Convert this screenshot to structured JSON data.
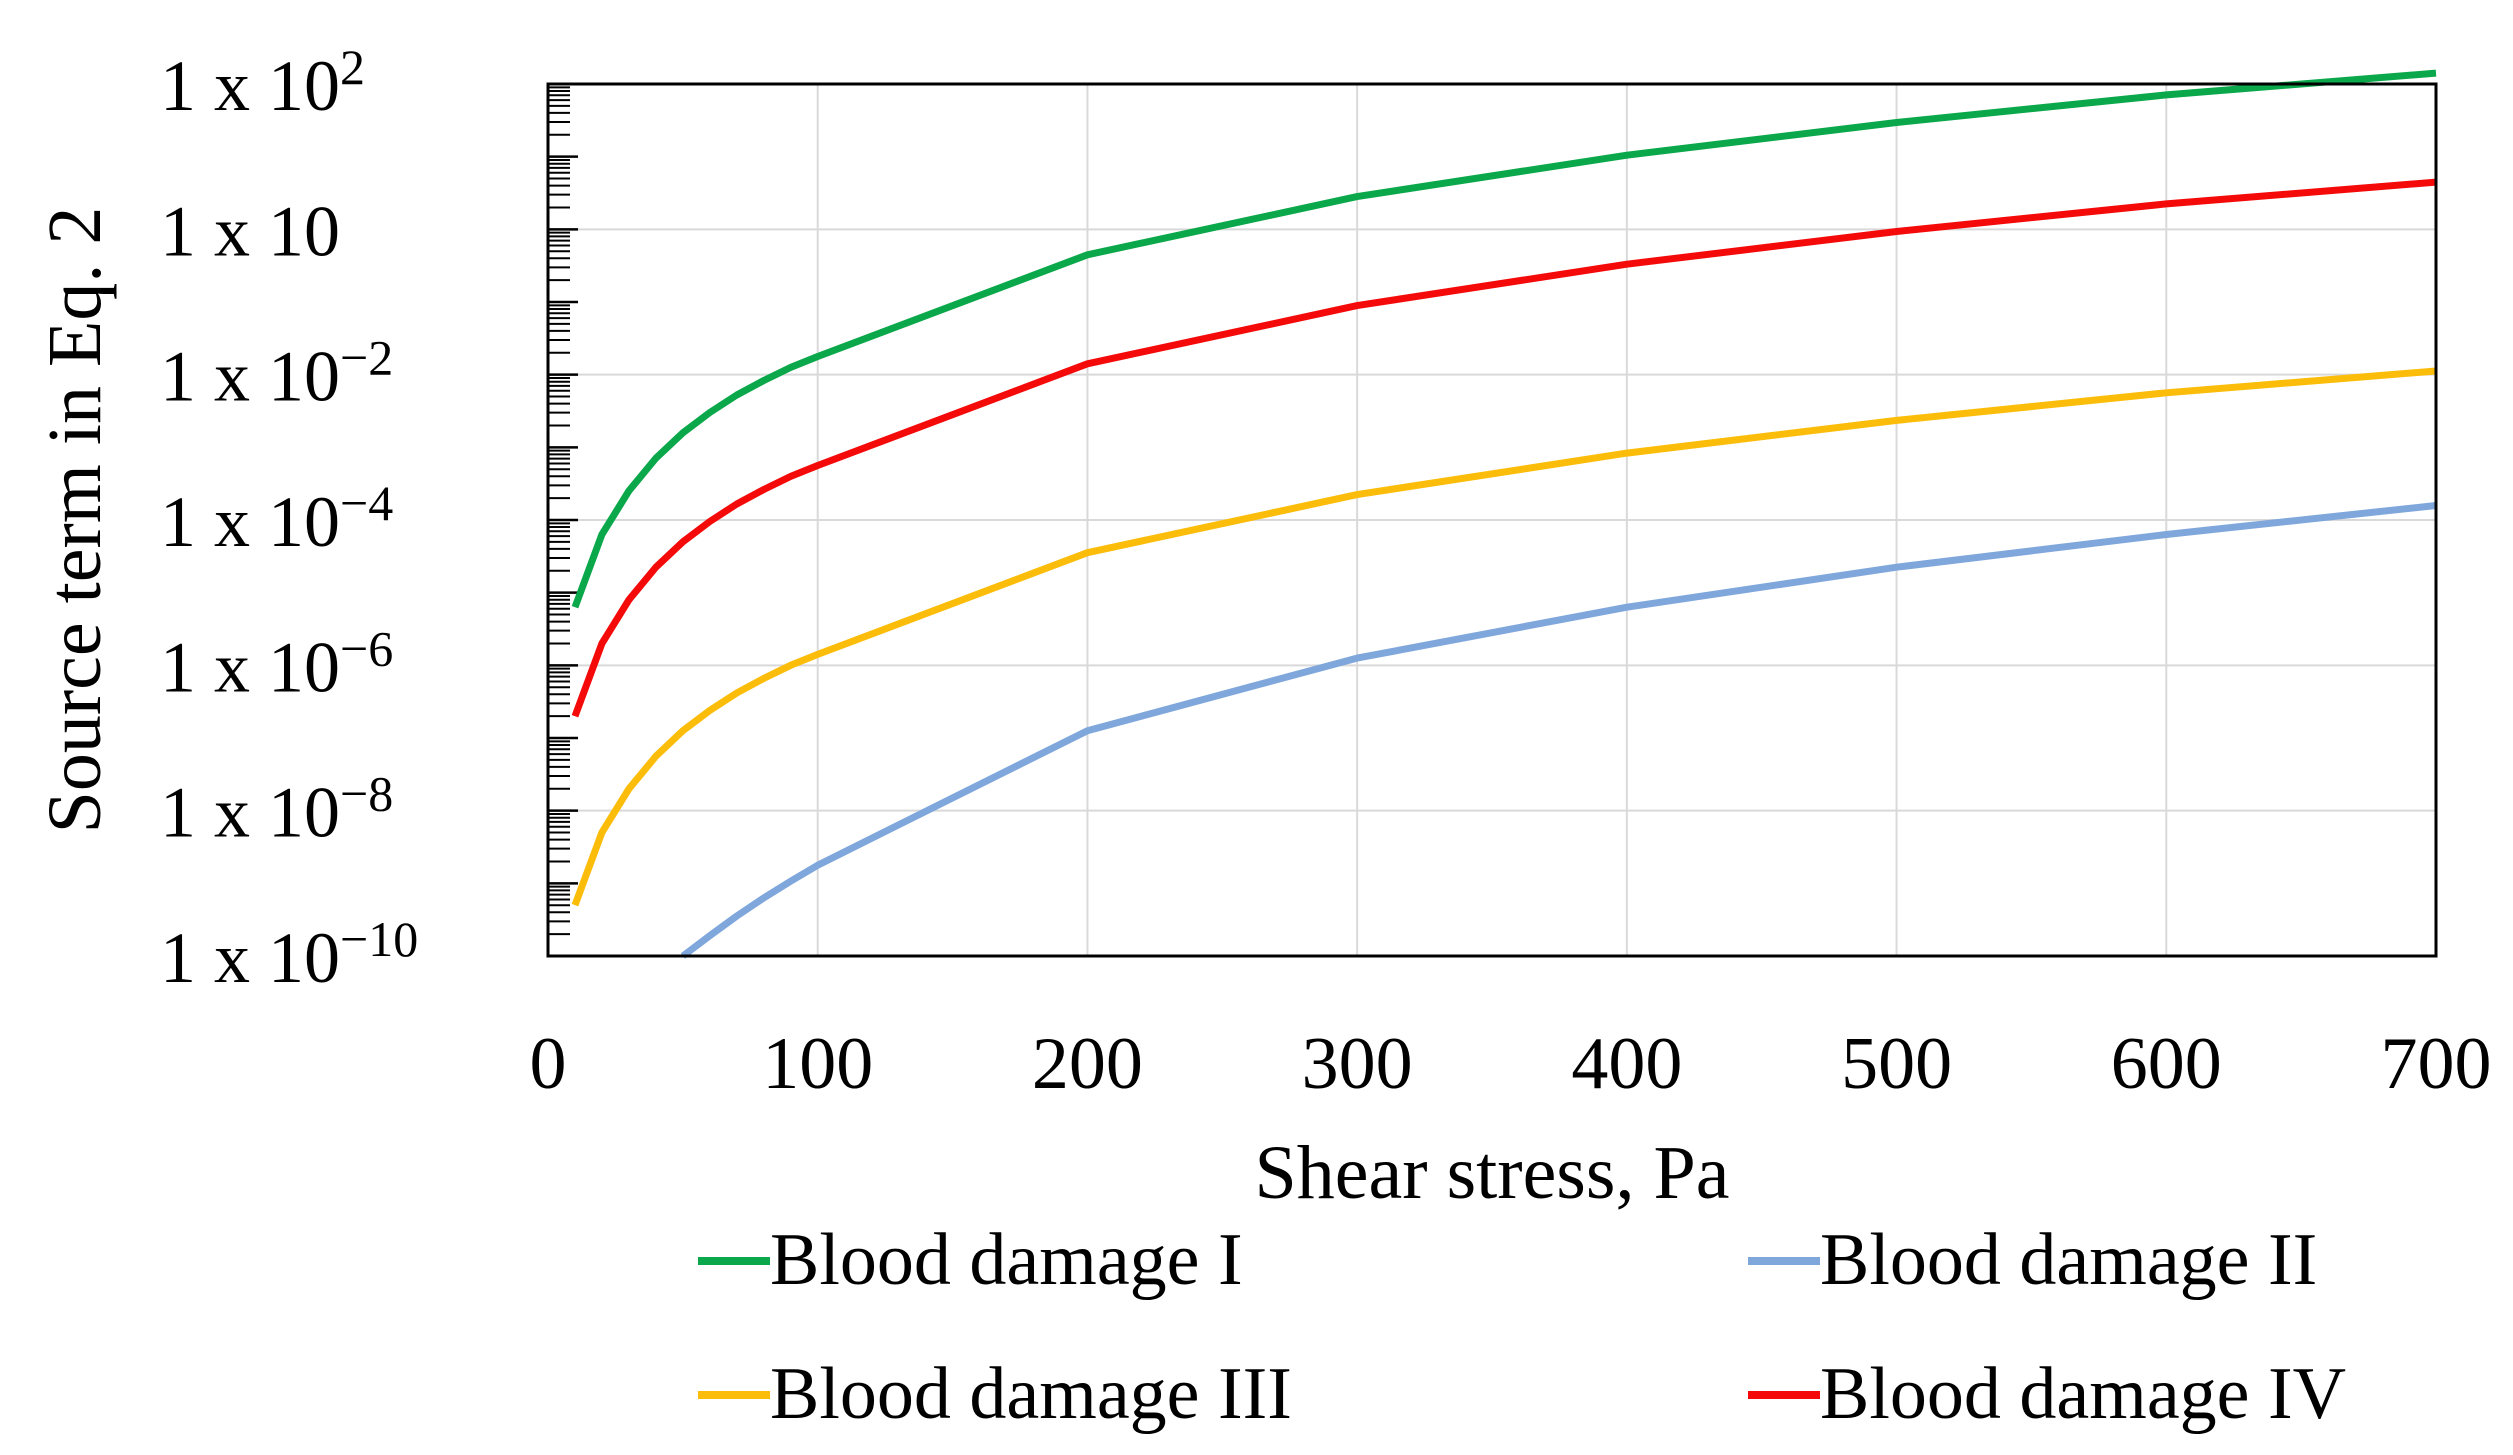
{
  "chart_data": {
    "type": "line",
    "title": "",
    "xlabel": "Shear stress, Pa",
    "ylabel": "Source term in Eq. 2",
    "xlim": [
      0,
      700
    ],
    "ylim_log10": [
      -10,
      2
    ],
    "scale_y": "log",
    "x_ticks": [
      0,
      100,
      200,
      300,
      400,
      500,
      600,
      700
    ],
    "x_tick_labels": [
      "0",
      "100",
      "200",
      "300",
      "400",
      "500",
      "600",
      "700"
    ],
    "y_ticks": [
      {
        "exp": 2,
        "base": "1 x 10",
        "sup": "2"
      },
      {
        "exp": 0,
        "base": "1 x 10",
        "sup": ""
      },
      {
        "exp": -2,
        "base": "1 x 10",
        "sup": "−2"
      },
      {
        "exp": -4,
        "base": "1 x 10",
        "sup": "−4"
      },
      {
        "exp": -6,
        "base": "1 x 10",
        "sup": "−6"
      },
      {
        "exp": -8,
        "base": "1 x 10",
        "sup": "−8"
      },
      {
        "exp": -10,
        "base": "1 x 10",
        "sup": "−10"
      }
    ],
    "grid": true,
    "legend_position": "bottom",
    "series": [
      {
        "name": "Blood damage I",
        "color": "#0aa84a",
        "x": [
          10,
          20,
          30,
          40,
          50,
          60,
          70,
          80,
          90,
          100,
          200,
          300,
          400,
          500,
          600,
          700
        ],
        "log10_y": [
          -5.2,
          -4.2,
          -3.6,
          -3.15,
          -2.8,
          -2.52,
          -2.28,
          -2.08,
          -1.9,
          -1.75,
          -0.35,
          0.45,
          1.02,
          1.47,
          1.85,
          2.15
        ]
      },
      {
        "name": "Blood damage II",
        "color": "#7fa7dc",
        "x": [
          50,
          60,
          70,
          80,
          90,
          100,
          200,
          300,
          400,
          500,
          600,
          700
        ],
        "log10_y": [
          -10.0,
          -9.72,
          -9.45,
          -9.2,
          -8.97,
          -8.75,
          -6.9,
          -5.9,
          -5.2,
          -4.65,
          -4.2,
          -3.8
        ]
      },
      {
        "name": "Blood damage III",
        "color": "#fbbd09",
        "x": [
          10,
          20,
          30,
          40,
          50,
          60,
          70,
          80,
          90,
          100,
          200,
          300,
          400,
          500,
          600,
          700
        ],
        "log10_y": [
          -9.3,
          -8.3,
          -7.7,
          -7.25,
          -6.9,
          -6.62,
          -6.38,
          -6.18,
          -6.0,
          -5.85,
          -4.45,
          -3.65,
          -3.08,
          -2.63,
          -2.25,
          -1.95
        ]
      },
      {
        "name": "Blood damage IV",
        "color": "#f50a0a",
        "x": [
          10,
          20,
          30,
          40,
          50,
          60,
          70,
          80,
          90,
          100,
          200,
          300,
          400,
          500,
          600,
          700
        ],
        "log10_y": [
          -6.7,
          -5.7,
          -5.1,
          -4.65,
          -4.3,
          -4.02,
          -3.78,
          -3.58,
          -3.4,
          -3.25,
          -1.85,
          -1.05,
          -0.48,
          -0.03,
          0.35,
          0.65
        ]
      }
    ]
  },
  "legend": {
    "items": [
      {
        "label": "Blood damage I",
        "color": "#0aa84a"
      },
      {
        "label": "Blood damage II",
        "color": "#7fa7dc"
      },
      {
        "label": "Blood damage III",
        "color": "#fbbd09"
      },
      {
        "label": "Blood damage IV",
        "color": "#f50a0a"
      }
    ]
  }
}
